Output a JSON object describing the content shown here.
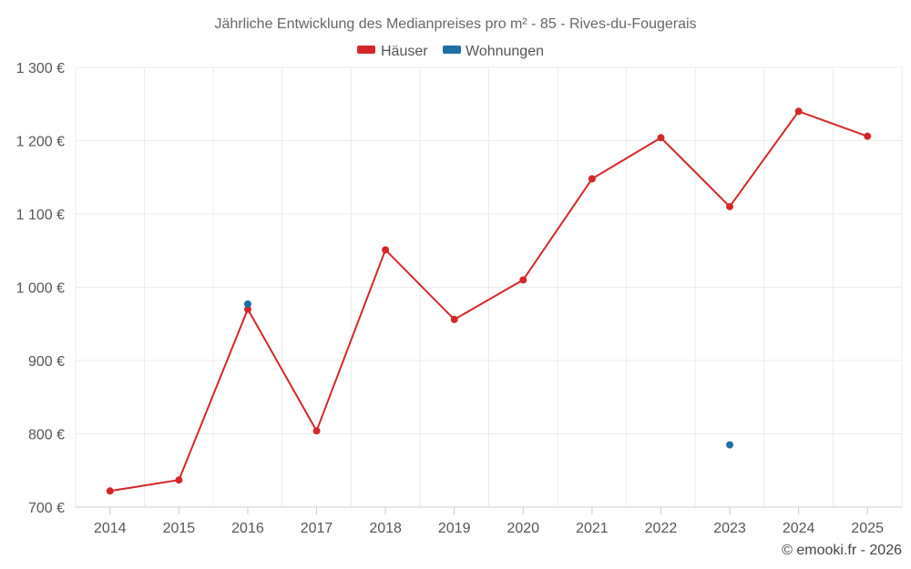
{
  "chart_data": {
    "type": "line",
    "title": "Jährliche Entwicklung des Medianpreises pro m² - 85 - Rives-du-Fougerais",
    "categories": [
      "2014",
      "2015",
      "2016",
      "2017",
      "2018",
      "2019",
      "2020",
      "2021",
      "2022",
      "2023",
      "2024",
      "2025"
    ],
    "series": [
      {
        "name": "Häuser",
        "color": "#d62728",
        "style": "line",
        "values": [
          722,
          737,
          970,
          804,
          1051,
          956,
          1010,
          1148,
          1204,
          1110,
          1240,
          1206
        ]
      },
      {
        "name": "Wohnungen",
        "color": "#1f6fa8",
        "style": "points",
        "values": [
          null,
          null,
          977,
          null,
          null,
          null,
          null,
          null,
          null,
          785,
          null,
          null
        ]
      }
    ],
    "ylim": [
      700,
      1300
    ],
    "yticks": [
      700,
      800,
      900,
      1000,
      1100,
      1200,
      1300
    ],
    "ytick_labels": [
      "700 €",
      "800 €",
      "900 €",
      "1 000 €",
      "1 100 €",
      "1 200 €",
      "1 300 €"
    ],
    "legend_position": "top-center",
    "grid": true
  },
  "credit": "© emooki.fr - 2026"
}
